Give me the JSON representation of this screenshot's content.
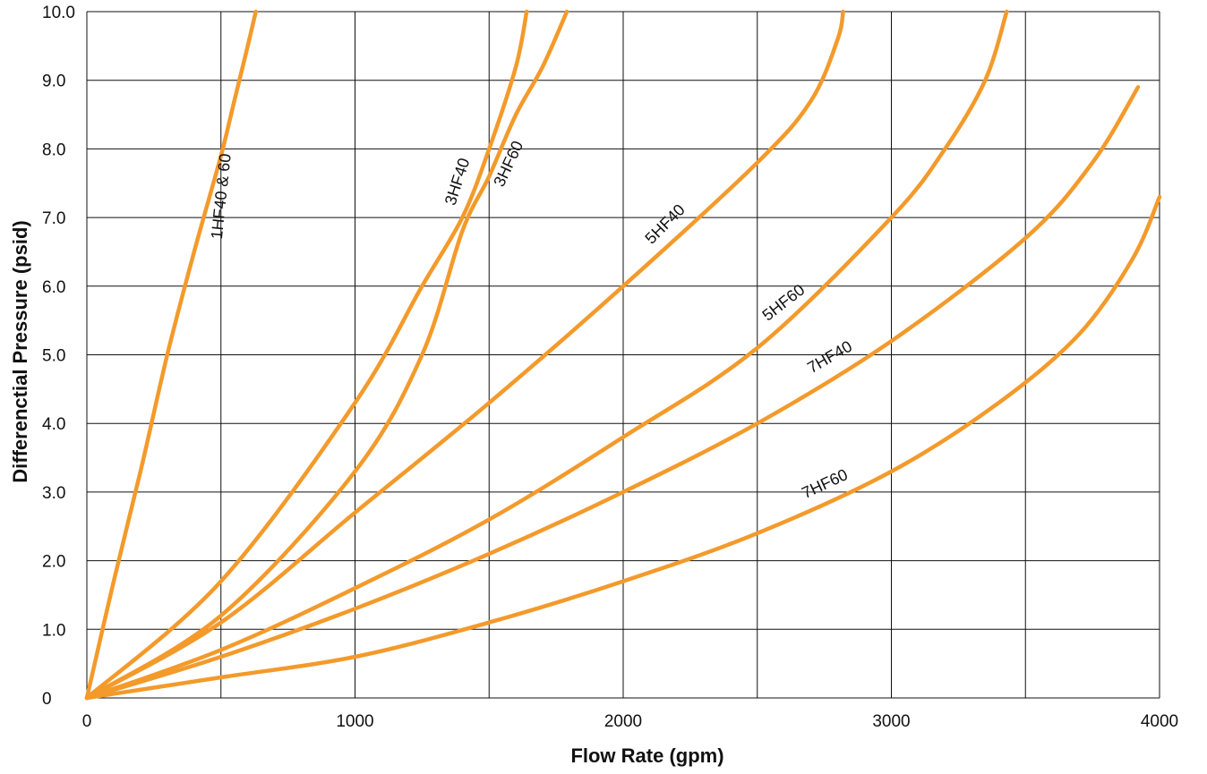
{
  "chart_data": {
    "type": "line",
    "title": "",
    "xlabel": "Flow Rate (gpm)",
    "ylabel": "Differenctial Pressure (psid)",
    "xlim": [
      0,
      4000
    ],
    "ylim": [
      0,
      10
    ],
    "x_ticks": [
      "0",
      "1000",
      "2000",
      "3000",
      "4000"
    ],
    "y_ticks": [
      "0",
      "1.0",
      "2.0",
      "3.0",
      "4.0",
      "5.0",
      "6.0",
      "7.0",
      "8.0",
      "9.0",
      "10.0"
    ],
    "grid": true,
    "legend": "none",
    "line_color": "#F39A2B",
    "series": [
      {
        "name": "1HF40 & 60",
        "x": [
          0,
          100,
          200,
          300,
          400,
          500,
          550,
          600,
          630
        ],
        "y": [
          0,
          1.7,
          3.3,
          5.0,
          6.5,
          7.9,
          8.7,
          9.5,
          10.0
        ]
      },
      {
        "name": "3HF40",
        "x": [
          0,
          500,
          1000,
          1250,
          1400,
          1500,
          1600,
          1640
        ],
        "y": [
          0,
          1.7,
          4.3,
          6.0,
          7.0,
          8.0,
          9.2,
          10.0
        ]
      },
      {
        "name": "3HF60",
        "x": [
          0,
          500,
          1000,
          1250,
          1400,
          1500,
          1600,
          1700,
          1790
        ],
        "y": [
          0,
          1.2,
          3.3,
          5.0,
          6.8,
          7.6,
          8.5,
          9.2,
          10.0
        ]
      },
      {
        "name": "5HF40",
        "x": [
          0,
          500,
          1000,
          1500,
          2000,
          2500,
          2700,
          2800,
          2820
        ],
        "y": [
          0,
          1.1,
          2.7,
          4.3,
          6.0,
          7.8,
          8.7,
          9.6,
          10.0
        ]
      },
      {
        "name": "5HF60",
        "x": [
          0,
          500,
          1000,
          1500,
          2000,
          2500,
          3000,
          3200,
          3350,
          3430
        ],
        "y": [
          0,
          0.7,
          1.6,
          2.6,
          3.8,
          5.1,
          7.0,
          8.0,
          9.0,
          10.0
        ]
      },
      {
        "name": "7HF40",
        "x": [
          0,
          500,
          1000,
          1500,
          2000,
          2500,
          3000,
          3500,
          3750,
          3920
        ],
        "y": [
          0,
          0.6,
          1.3,
          2.1,
          3.0,
          4.0,
          5.2,
          6.7,
          7.8,
          8.9
        ]
      },
      {
        "name": "7HF60",
        "x": [
          0,
          500,
          1000,
          1500,
          2000,
          2500,
          3000,
          3400,
          3700,
          3900,
          4000
        ],
        "y": [
          0,
          0.3,
          0.6,
          1.1,
          1.7,
          2.4,
          3.3,
          4.3,
          5.3,
          6.4,
          7.3
        ]
      }
    ],
    "series_labels": [
      {
        "text": "1HF40 & 60",
        "x": 520,
        "y": 7.3,
        "angle": -84
      },
      {
        "text": "3HF40",
        "x": 1400,
        "y": 7.5,
        "angle": -72
      },
      {
        "text": "3HF60",
        "x": 1590,
        "y": 7.75,
        "angle": -65
      },
      {
        "text": "5HF40",
        "x": 2170,
        "y": 6.85,
        "angle": -45
      },
      {
        "text": "5HF60",
        "x": 2610,
        "y": 5.7,
        "angle": -38
      },
      {
        "text": "7HF40",
        "x": 2780,
        "y": 4.9,
        "angle": -30
      },
      {
        "text": "7HF60",
        "x": 2760,
        "y": 3.05,
        "angle": -25
      }
    ]
  }
}
